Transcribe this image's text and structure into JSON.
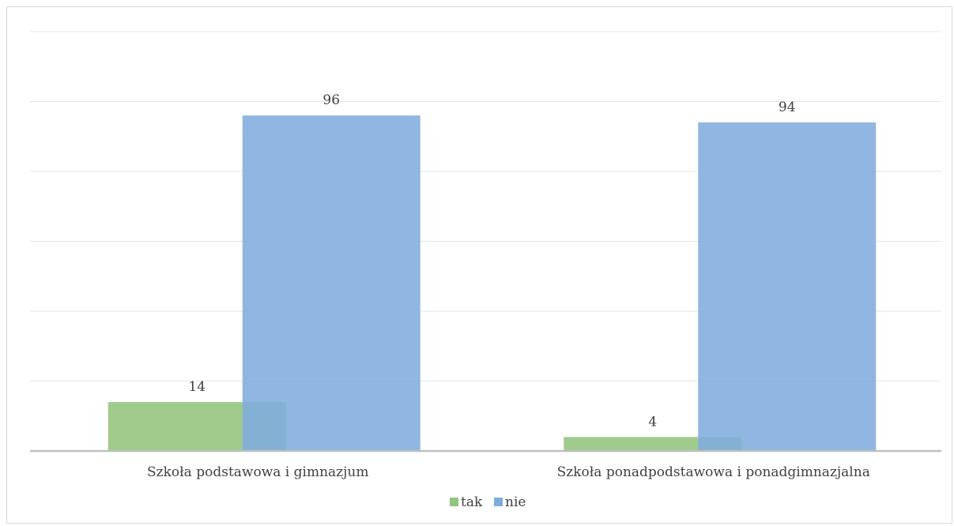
{
  "chart_data": {
    "type": "bar",
    "title": "",
    "xlabel": "",
    "ylabel": "",
    "categories": [
      "Szkoła podstawowa i gimnazjum",
      "Szkoła ponadpodstawowa i ponadgimnazjalna"
    ],
    "series": [
      {
        "name": "tak",
        "values": [
          14,
          4
        ],
        "color": "#93c47d"
      },
      {
        "name": "nie",
        "values": [
          96,
          94
        ],
        "color": "#7faddd"
      }
    ],
    "ylim": [
      0,
      120
    ],
    "grid": true,
    "legend_position": "bottom",
    "bars_overlap": true
  }
}
